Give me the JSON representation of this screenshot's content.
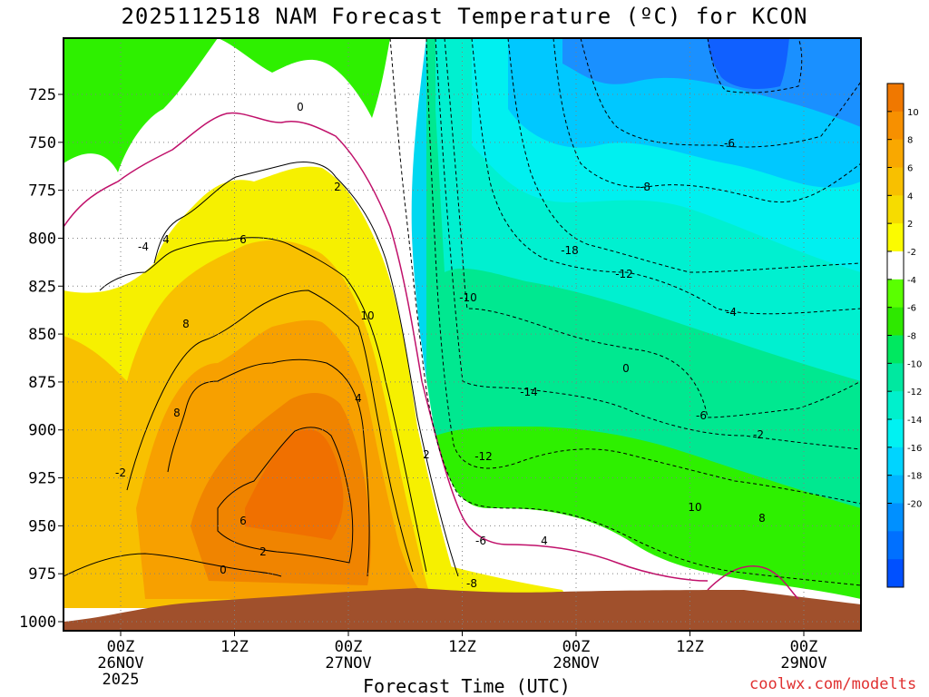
{
  "title": "2025112518 NAM Forecast Temperature (ºC) for KCON",
  "xlabel": "Forecast Time (UTC)",
  "credit": "coolwx.com/modelts",
  "chart_data": {
    "type": "heatmap",
    "title": "2025112518 NAM Forecast Temperature (ºC) for KCON",
    "xlabel": "Forecast Time (UTC)",
    "ylabel": "",
    "y_axis": {
      "ticks": [
        725,
        750,
        775,
        800,
        825,
        850,
        875,
        900,
        925,
        950,
        975,
        1000
      ],
      "inverted": true,
      "ylim": [
        1000,
        700
      ]
    },
    "x_axis": {
      "ticks": [
        {
          "label": "00Z",
          "sub1": "26NOV",
          "sub2": "2025"
        },
        {
          "label": "12Z",
          "sub1": "",
          "sub2": ""
        },
        {
          "label": "00Z",
          "sub1": "27NOV",
          "sub2": ""
        },
        {
          "label": "12Z",
          "sub1": "",
          "sub2": ""
        },
        {
          "label": "00Z",
          "sub1": "28NOV",
          "sub2": ""
        },
        {
          "label": "12Z",
          "sub1": "",
          "sub2": ""
        },
        {
          "label": "00Z",
          "sub1": "29NOV",
          "sub2": ""
        }
      ]
    },
    "grid": true,
    "colorbar": {
      "labels": [
        "10",
        "8",
        "6",
        "4",
        "2",
        "-2",
        "-4",
        "-6",
        "-8",
        "-10",
        "-12",
        "-14",
        "-16",
        "-18",
        "-20"
      ],
      "colors": [
        "#f07800",
        "#f79000",
        "#f9a800",
        "#f8c000",
        "#f6dc00",
        "#fbfb00",
        "#ffffff",
        "#5aff00",
        "#2ee800",
        "#00e860",
        "#00e8a0",
        "#00f0cc",
        "#00f2f2",
        "#00d4ff",
        "#00b4ff",
        "#0090ff",
        "#0070ff",
        "#0050ff"
      ]
    },
    "contour_labels": [
      "0",
      "2",
      "4",
      "6",
      "8",
      "10",
      "8",
      "6",
      "4",
      "2",
      "0",
      "-2",
      "-4",
      "-6",
      "-8",
      "-10",
      "-12",
      "-14",
      "-18",
      "-12",
      "-8",
      "-6",
      "-4",
      "-6",
      "-2",
      "10",
      "8",
      "4",
      "0",
      "2"
    ]
  }
}
